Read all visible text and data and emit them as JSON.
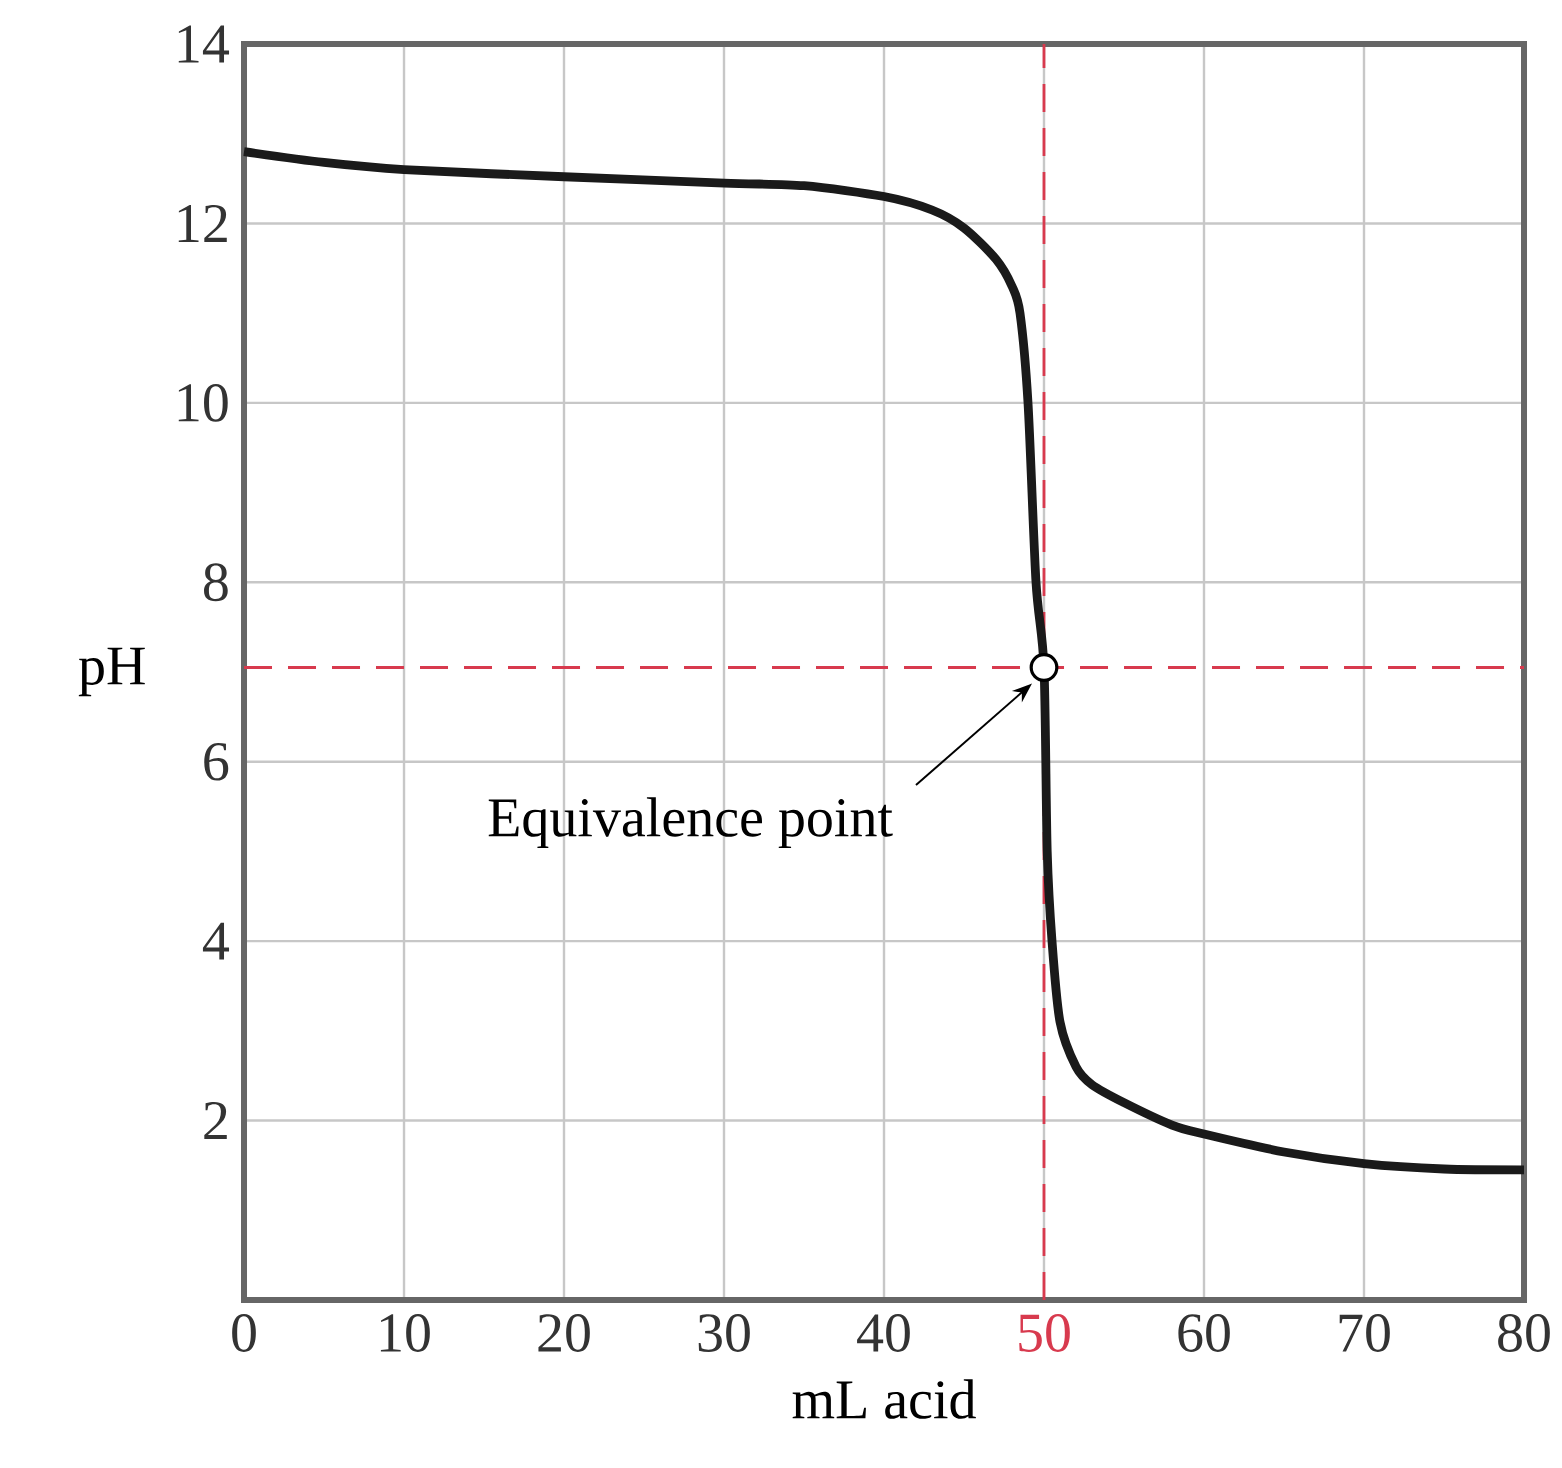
{
  "chart_data": {
    "type": "line",
    "xlabel": "mL acid",
    "ylabel": "pH",
    "xlim": [
      0,
      80
    ],
    "ylim": [
      0,
      14
    ],
    "xticks": [
      0,
      10,
      20,
      30,
      40,
      50,
      60,
      70,
      80
    ],
    "yticks": [
      {
        "value": 0,
        "label": null
      },
      2,
      4,
      6,
      8,
      10,
      12,
      14
    ],
    "grid": true,
    "marker": "none",
    "line_style": "solid",
    "series": [
      {
        "color": "#1a1a1a",
        "x": [
          0,
          5,
          10,
          20,
          30,
          35,
          40,
          43,
          45,
          47,
          48,
          48.5,
          49,
          49.5,
          50,
          50.2,
          50.5,
          51,
          52,
          53,
          55,
          58,
          60,
          65,
          70,
          75,
          80
        ],
        "values": [
          12.8,
          12.68,
          12.6,
          12.52,
          12.45,
          12.42,
          12.3,
          12.15,
          11.95,
          11.6,
          11.3,
          11.0,
          10.0,
          8.0,
          7.05,
          5.0,
          4.0,
          3.1,
          2.6,
          2.4,
          2.2,
          1.95,
          1.85,
          1.65,
          1.52,
          1.46,
          1.45
        ]
      }
    ],
    "ref_lines": [
      {
        "axis": "x",
        "value": 50,
        "color": "#d83a4e",
        "line_style": "dashed"
      },
      {
        "axis": "y",
        "value": 7.05,
        "color": "#d83a4e",
        "line_style": "dashed"
      }
    ],
    "annotations": [
      "Equivalence point"
    ]
  }
}
